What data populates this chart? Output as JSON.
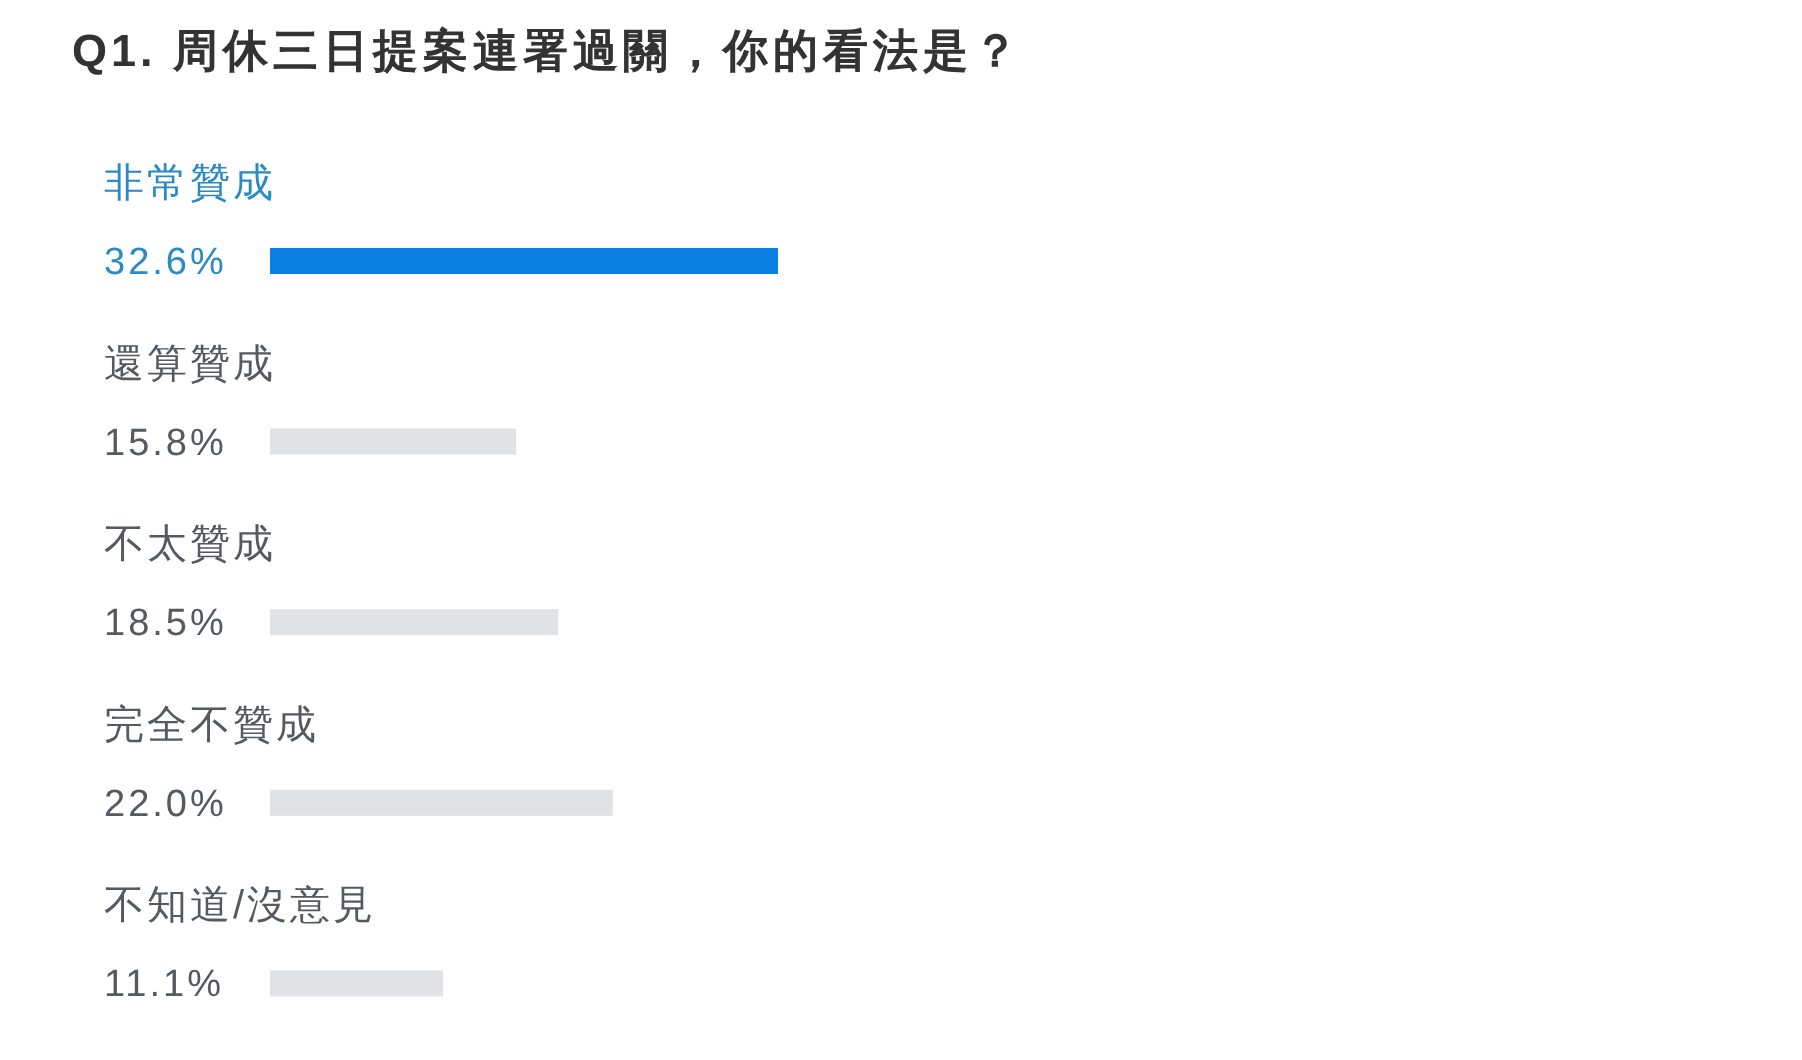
{
  "chart_data": {
    "type": "bar",
    "orientation": "horizontal",
    "title": "Q1. 周休三日提案連署過關，你的看法是？",
    "categories": [
      "非常贊成",
      "還算贊成",
      "不太贊成",
      "完全不贊成",
      "不知道/沒意見"
    ],
    "values": [
      32.6,
      15.8,
      18.5,
      22.0,
      11.1
    ],
    "value_labels": [
      "32.6%",
      "15.8%",
      "18.5%",
      "22.0%",
      "11.1%"
    ],
    "colors": [
      "#0a80e4",
      "#e0e2e6",
      "#e0e2e6",
      "#e0e2e6",
      "#e0e2e6"
    ]
  }
}
